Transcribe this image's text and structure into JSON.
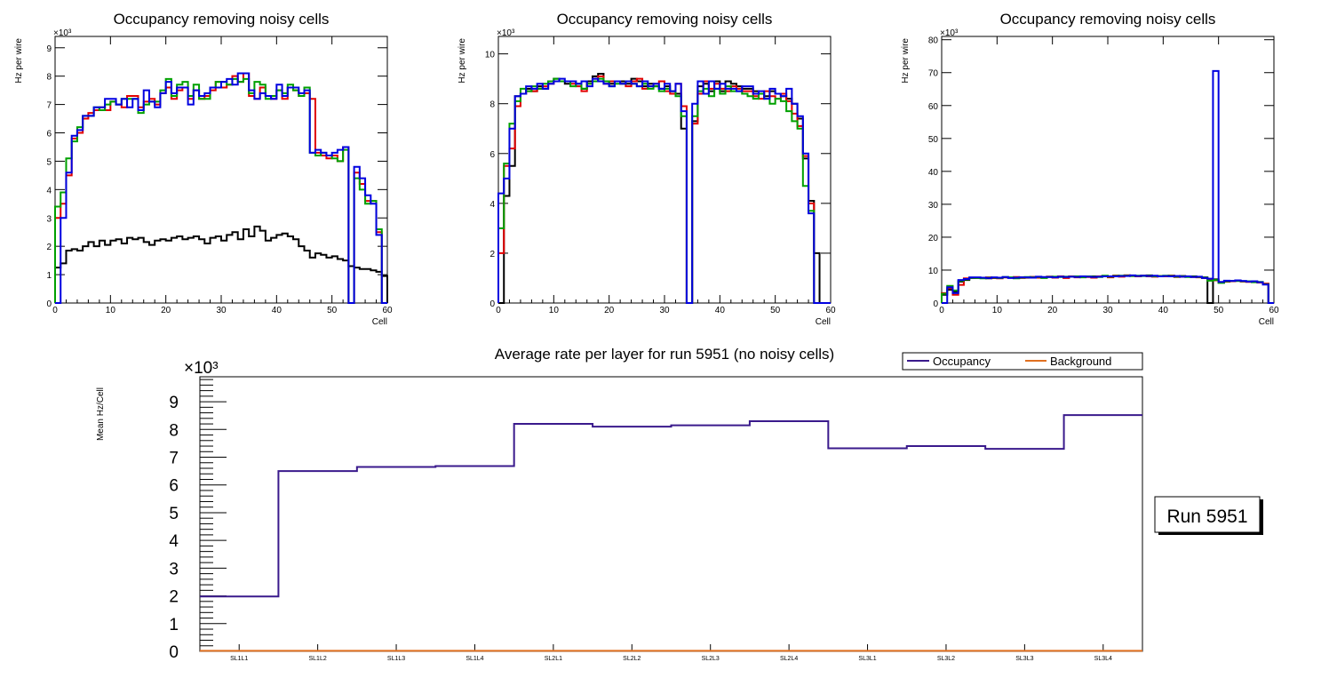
{
  "colors": {
    "black": "#000000",
    "red": "#e00000",
    "green": "#00a000",
    "blue": "#0000e0",
    "occupancy": "#3a1a8c",
    "background": "#e07020"
  },
  "chart_data": [
    {
      "type": "line",
      "step": true,
      "title": "Occupancy removing noisy cells",
      "xlabel": "Cell",
      "ylabel": "Hz per wire",
      "y_multiplier": "×10³",
      "xlim": [
        0,
        60
      ],
      "ylim": [
        0,
        9.4
      ],
      "xticks": [
        0,
        10,
        20,
        30,
        40,
        50,
        60
      ],
      "yticks": [
        0,
        1,
        2,
        3,
        4,
        5,
        6,
        7,
        8,
        9
      ],
      "series": [
        {
          "name": "layer1",
          "color": "black",
          "values": [
            1.25,
            1.4,
            1.85,
            1.9,
            1.85,
            2.0,
            2.15,
            2.0,
            2.2,
            2.05,
            2.2,
            2.25,
            2.1,
            2.3,
            2.25,
            2.3,
            2.15,
            2.05,
            2.2,
            2.25,
            2.2,
            2.3,
            2.35,
            2.25,
            2.3,
            2.35,
            2.25,
            2.1,
            2.3,
            2.35,
            2.2,
            2.4,
            2.5,
            2.25,
            2.6,
            2.35,
            2.7,
            2.55,
            2.2,
            2.3,
            2.4,
            2.45,
            2.35,
            2.25,
            2.0,
            1.85,
            1.6,
            1.75,
            1.7,
            1.6,
            1.65,
            1.55,
            1.5,
            1.3,
            1.25,
            1.2,
            1.2,
            1.15,
            1.1,
            0.95
          ]
        },
        {
          "name": "layer2",
          "color": "red",
          "values": [
            3.0,
            3.5,
            4.5,
            5.8,
            6.0,
            6.5,
            6.7,
            6.8,
            6.9,
            6.8,
            7.1,
            7.0,
            6.9,
            7.3,
            7.3,
            6.9,
            7.1,
            7.2,
            7.0,
            7.4,
            7.6,
            7.2,
            7.5,
            7.6,
            7.2,
            7.5,
            7.2,
            7.3,
            7.5,
            7.8,
            7.6,
            7.7,
            8.0,
            7.8,
            8.1,
            7.3,
            7.2,
            7.6,
            7.3,
            7.2,
            7.5,
            7.2,
            7.6,
            7.5,
            7.3,
            7.4,
            7.2,
            5.3,
            5.2,
            5.1,
            5.2,
            5.0,
            5.5,
            0.0,
            4.6,
            4.2,
            3.6,
            3.6,
            2.5,
            0.0
          ]
        },
        {
          "name": "layer3",
          "color": "green",
          "values": [
            3.4,
            3.9,
            5.1,
            5.7,
            6.2,
            6.6,
            6.6,
            6.9,
            6.8,
            7.0,
            7.1,
            7.0,
            7.2,
            7.2,
            7.2,
            6.7,
            7.0,
            7.1,
            7.1,
            7.5,
            7.9,
            7.3,
            7.7,
            7.8,
            7.3,
            7.7,
            7.2,
            7.2,
            7.6,
            7.8,
            7.8,
            7.7,
            7.9,
            7.8,
            7.9,
            7.4,
            7.8,
            7.7,
            7.2,
            7.3,
            7.5,
            7.4,
            7.7,
            7.5,
            7.3,
            7.6,
            5.3,
            5.2,
            5.3,
            5.2,
            5.1,
            5.0,
            5.4,
            0.0,
            4.4,
            4.0,
            3.5,
            3.6,
            2.6,
            0.0
          ]
        },
        {
          "name": "layer4",
          "color": "blue",
          "values": [
            0.0,
            3.0,
            4.6,
            5.9,
            6.1,
            6.6,
            6.6,
            6.9,
            6.9,
            7.2,
            7.2,
            7.0,
            7.2,
            6.9,
            7.2,
            6.8,
            7.5,
            7.1,
            6.9,
            7.4,
            7.8,
            7.4,
            7.6,
            7.6,
            7.0,
            7.5,
            7.3,
            7.4,
            7.6,
            7.6,
            7.8,
            7.9,
            7.7,
            8.1,
            8.1,
            7.5,
            7.2,
            7.4,
            7.3,
            7.2,
            7.7,
            7.3,
            7.6,
            7.6,
            7.4,
            7.5,
            5.3,
            5.4,
            5.3,
            5.2,
            5.3,
            5.4,
            5.5,
            0.0,
            4.8,
            4.4,
            3.8,
            3.5,
            2.4,
            0.0
          ]
        }
      ]
    },
    {
      "type": "line",
      "step": true,
      "title": "Occupancy removing noisy cells",
      "xlabel": "Cell",
      "ylabel": "Hz per wire",
      "y_multiplier": "×10³",
      "xlim": [
        0,
        60
      ],
      "ylim": [
        0,
        10.7
      ],
      "xticks": [
        0,
        10,
        20,
        30,
        40,
        50,
        60
      ],
      "yticks": [
        0,
        2,
        4,
        6,
        8,
        10
      ],
      "series": [
        {
          "name": "layer1",
          "color": "black",
          "values": [
            0.0,
            4.3,
            5.5,
            8.3,
            8.4,
            8.6,
            8.5,
            8.7,
            8.6,
            8.9,
            9.0,
            8.9,
            8.8,
            8.9,
            8.8,
            8.6,
            8.9,
            9.1,
            9.2,
            8.9,
            8.8,
            8.9,
            8.9,
            8.8,
            9.0,
            8.9,
            8.7,
            8.8,
            8.7,
            8.6,
            8.7,
            8.5,
            8.4,
            7.0,
            0.0,
            7.3,
            8.7,
            8.8,
            8.5,
            8.9,
            8.5,
            8.9,
            8.8,
            8.7,
            8.6,
            8.6,
            8.5,
            8.4,
            8.3,
            8.5,
            8.4,
            8.3,
            8.2,
            8.0,
            7.4,
            5.8,
            4.1,
            2.0,
            0.0,
            0.0
          ]
        },
        {
          "name": "layer2",
          "color": "red",
          "values": [
            2.0,
            5.5,
            6.2,
            7.9,
            8.4,
            8.5,
            8.5,
            8.6,
            8.7,
            8.8,
            8.9,
            8.9,
            8.9,
            8.8,
            8.7,
            8.5,
            8.8,
            9.0,
            9.1,
            8.8,
            8.9,
            8.9,
            8.8,
            8.7,
            8.9,
            9.0,
            8.6,
            8.7,
            8.8,
            8.9,
            8.5,
            8.4,
            8.8,
            7.9,
            0.0,
            7.2,
            8.4,
            8.9,
            8.6,
            8.8,
            8.6,
            8.5,
            8.7,
            8.6,
            8.5,
            8.5,
            8.3,
            8.2,
            8.5,
            8.3,
            8.2,
            8.4,
            8.1,
            7.6,
            7.1,
            5.9,
            4.0,
            0.0,
            0.0,
            0.0
          ]
        },
        {
          "name": "layer3",
          "color": "green",
          "values": [
            3.0,
            5.6,
            7.2,
            8.1,
            8.6,
            8.5,
            8.7,
            8.6,
            8.8,
            8.9,
            9.0,
            8.9,
            8.9,
            8.7,
            8.8,
            8.6,
            8.8,
            8.9,
            9.0,
            8.9,
            8.7,
            8.8,
            8.8,
            8.9,
            8.8,
            8.7,
            8.8,
            8.6,
            8.7,
            8.5,
            8.6,
            8.5,
            8.3,
            7.5,
            0.0,
            7.5,
            8.5,
            8.6,
            8.3,
            8.6,
            8.4,
            8.7,
            8.5,
            8.5,
            8.4,
            8.3,
            8.2,
            8.4,
            8.2,
            8.0,
            8.2,
            8.1,
            7.7,
            7.3,
            7.0,
            4.7,
            3.7,
            0.0,
            0.0,
            0.0
          ]
        },
        {
          "name": "layer4",
          "color": "blue",
          "values": [
            4.4,
            5.0,
            7.0,
            8.3,
            8.4,
            8.7,
            8.6,
            8.8,
            8.6,
            8.8,
            8.9,
            9.0,
            8.9,
            8.9,
            8.8,
            8.9,
            8.7,
            9.0,
            8.9,
            8.8,
            8.7,
            8.9,
            8.8,
            8.9,
            8.8,
            8.7,
            8.9,
            8.7,
            8.8,
            8.6,
            8.8,
            8.5,
            8.8,
            7.7,
            0.0,
            8.0,
            8.9,
            8.4,
            8.9,
            8.6,
            8.8,
            8.6,
            8.6,
            8.5,
            8.7,
            8.7,
            8.4,
            8.5,
            8.2,
            8.6,
            8.4,
            8.3,
            8.6,
            8.0,
            7.5,
            6.0,
            3.6,
            0.0,
            0.0,
            0.0
          ]
        }
      ]
    },
    {
      "type": "line",
      "step": true,
      "title": "Occupancy removing noisy cells",
      "xlabel": "Cell",
      "ylabel": "Hz per wire",
      "y_multiplier": "×10³",
      "xlim": [
        0,
        60
      ],
      "ylim": [
        0,
        81
      ],
      "xticks": [
        0,
        10,
        20,
        30,
        40,
        50,
        60
      ],
      "yticks": [
        0,
        10,
        20,
        30,
        40,
        50,
        60,
        70,
        80
      ],
      "series": [
        {
          "name": "layer1",
          "color": "black",
          "values": [
            2.5,
            4.0,
            3.5,
            6.5,
            7.0,
            7.6,
            7.7,
            7.6,
            7.5,
            7.6,
            7.7,
            7.8,
            7.7,
            7.6,
            7.8,
            7.7,
            7.9,
            7.8,
            7.7,
            8.0,
            7.9,
            8.0,
            7.9,
            8.1,
            8.0,
            7.9,
            8.0,
            8.1,
            8.0,
            8.2,
            8.1,
            8.3,
            8.2,
            8.4,
            8.3,
            8.2,
            8.3,
            8.4,
            8.2,
            8.1,
            8.2,
            8.3,
            8.1,
            8.2,
            8.0,
            8.1,
            7.9,
            7.8,
            0.0,
            7.2,
            6.3,
            6.5,
            6.6,
            6.7,
            6.6,
            6.5,
            6.4,
            6.3,
            5.8,
            0.0
          ]
        },
        {
          "name": "layer2",
          "color": "red",
          "values": [
            3.0,
            4.5,
            2.5,
            5.5,
            7.5,
            7.7,
            7.6,
            7.7,
            7.8,
            7.6,
            7.5,
            7.8,
            7.7,
            7.9,
            7.6,
            7.8,
            7.9,
            7.7,
            7.8,
            8.0,
            7.7,
            8.1,
            7.6,
            8.1,
            7.8,
            8.0,
            7.9,
            7.7,
            8.1,
            8.2,
            7.8,
            8.3,
            8.0,
            8.4,
            8.2,
            8.1,
            8.3,
            8.1,
            8.0,
            8.2,
            8.1,
            8.3,
            7.9,
            8.0,
            8.1,
            7.9,
            7.8,
            7.6,
            7.0,
            6.9,
            6.2,
            6.5,
            6.6,
            6.8,
            6.5,
            6.4,
            6.5,
            6.2,
            5.9,
            0.0
          ]
        },
        {
          "name": "layer3",
          "color": "green",
          "values": [
            2.8,
            5.2,
            3.8,
            6.8,
            7.2,
            7.7,
            7.6,
            7.5,
            7.7,
            7.7,
            7.6,
            7.9,
            7.8,
            7.5,
            7.7,
            7.9,
            7.8,
            7.9,
            7.6,
            7.9,
            8.0,
            7.9,
            8.0,
            8.0,
            8.1,
            7.8,
            8.1,
            8.0,
            7.9,
            8.3,
            8.0,
            8.2,
            8.3,
            8.3,
            8.2,
            8.3,
            8.2,
            8.3,
            8.1,
            8.2,
            8.3,
            8.2,
            8.0,
            8.1,
            7.9,
            8.0,
            7.9,
            7.7,
            6.8,
            7.0,
            6.1,
            6.6,
            6.7,
            6.7,
            6.6,
            6.6,
            6.3,
            6.4,
            5.7,
            0.0
          ]
        },
        {
          "name": "layer4",
          "color": "blue",
          "values": [
            0.0,
            4.8,
            3.0,
            7.0,
            7.3,
            7.8,
            7.8,
            7.7,
            7.6,
            7.8,
            7.7,
            7.9,
            7.6,
            7.7,
            7.8,
            7.8,
            7.7,
            8.0,
            7.9,
            7.9,
            7.8,
            8.0,
            7.9,
            8.0,
            7.9,
            8.1,
            8.0,
            7.9,
            8.0,
            8.1,
            8.1,
            8.1,
            8.2,
            8.2,
            8.4,
            8.2,
            8.3,
            8.2,
            8.3,
            8.1,
            8.2,
            8.1,
            8.2,
            8.0,
            8.1,
            7.9,
            8.0,
            7.6,
            7.4,
            70.5,
            6.4,
            6.8,
            6.7,
            6.9,
            6.7,
            6.5,
            6.6,
            6.3,
            5.6,
            0.0
          ]
        }
      ]
    },
    {
      "type": "line",
      "step": true,
      "title": "Average rate per layer for run 5951 (no noisy cells)",
      "xlabel": "",
      "ylabel": "Mean Hz/Cell",
      "y_multiplier": "×10³",
      "ylim": [
        0,
        9.9
      ],
      "yticks": [
        0,
        1,
        2,
        3,
        4,
        5,
        6,
        7,
        8,
        9
      ],
      "categories": [
        "SL1L1",
        "SL1L2",
        "SL1L3",
        "SL1L4",
        "SL2L1",
        "SL2L2",
        "SL2L3",
        "SL2L4",
        "SL3L1",
        "SL3L2",
        "SL3L3",
        "SL3L4"
      ],
      "legend": {
        "position": "top-right",
        "labels": [
          "Occupancy",
          "Background"
        ]
      },
      "series": [
        {
          "name": "Occupancy",
          "color": "occupancy",
          "values": [
            1.98,
            6.5,
            6.65,
            6.68,
            8.2,
            8.1,
            8.15,
            8.3,
            7.32,
            7.4,
            7.3,
            8.52
          ]
        },
        {
          "name": "Background",
          "color": "background",
          "values": [
            0.02,
            0.02,
            0.02,
            0.02,
            0.02,
            0.02,
            0.02,
            0.02,
            0.02,
            0.02,
            0.02,
            0.02
          ]
        }
      ]
    }
  ],
  "run_label": "Run 5951"
}
